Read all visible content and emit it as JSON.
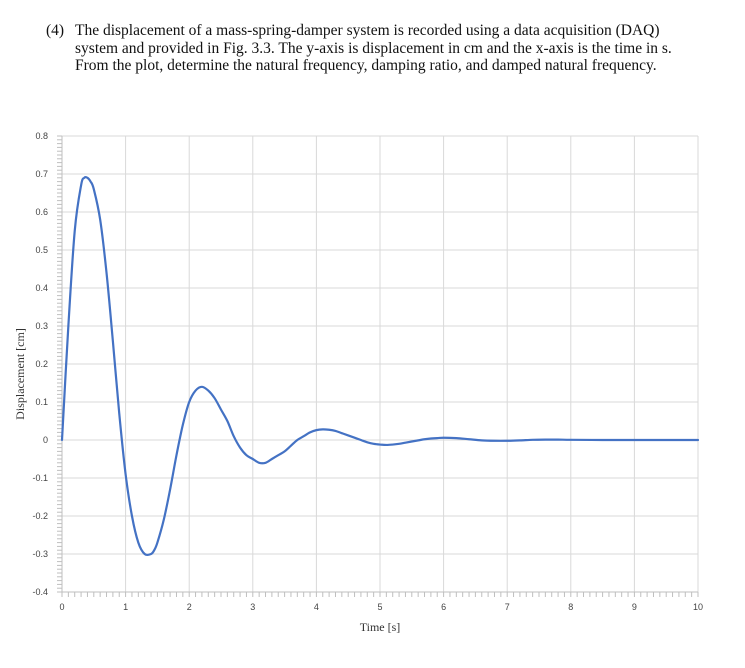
{
  "problem": {
    "number": "(4)",
    "text": "The displacement of a mass-spring-damper system is recorded using a data acquisition (DAQ) system and provided in Fig. 3.3. The y-axis is displacement in cm and the x-axis is the time in s. From the plot, determine the natural frequency, damping ratio, and damped natural frequency."
  },
  "chart_data": {
    "type": "line",
    "title": "",
    "xlabel": "Time [s]",
    "ylabel": "Displacement  [cm]",
    "xlim": [
      0,
      10
    ],
    "ylim": [
      -0.4,
      0.8
    ],
    "xticks": [
      "0",
      "1",
      "2",
      "3",
      "4",
      "5",
      "6",
      "7",
      "8",
      "9",
      "10"
    ],
    "yticks": [
      "0.8",
      "0.7",
      "0.6",
      "0.5",
      "0.4",
      "0.3",
      "0.2",
      "0.1",
      "0",
      "-0.1",
      "-0.2",
      "-0.3",
      "-0.4"
    ],
    "grid": true,
    "series": [
      {
        "color": "#4472c4",
        "x": [
          0,
          0.1,
          0.2,
          0.3,
          0.35,
          0.4,
          0.45,
          0.5,
          0.6,
          0.7,
          0.8,
          0.9,
          1.0,
          1.1,
          1.2,
          1.3,
          1.4,
          1.45,
          1.5,
          1.6,
          1.7,
          1.8,
          1.9,
          2.0,
          2.1,
          2.2,
          2.3,
          2.4,
          2.5,
          2.6,
          2.7,
          2.8,
          2.9,
          3.0,
          3.1,
          3.2,
          3.3,
          3.4,
          3.5,
          3.6,
          3.7,
          3.8,
          3.9,
          4.0,
          4.1,
          4.2,
          4.3,
          4.4,
          4.5,
          4.6,
          4.7,
          4.8,
          4.9,
          5.0,
          5.1,
          5.2,
          5.3,
          5.4,
          5.5,
          5.6,
          5.7,
          5.8,
          5.9,
          6.0,
          6.2,
          6.4,
          6.6,
          6.8,
          7.0,
          7.2,
          7.4,
          7.6,
          7.8,
          8.0,
          8.5,
          9.0,
          9.5,
          10.0
        ],
        "y": [
          0,
          0.3,
          0.55,
          0.67,
          0.69,
          0.69,
          0.68,
          0.66,
          0.58,
          0.44,
          0.26,
          0.07,
          -0.09,
          -0.2,
          -0.27,
          -0.3,
          -0.3,
          -0.29,
          -0.27,
          -0.21,
          -0.13,
          -0.04,
          0.04,
          0.1,
          0.13,
          0.14,
          0.13,
          0.11,
          0.08,
          0.05,
          0.01,
          -0.02,
          -0.04,
          -0.05,
          -0.06,
          -0.06,
          -0.05,
          -0.04,
          -0.03,
          -0.015,
          0,
          0.01,
          0.02,
          0.026,
          0.028,
          0.027,
          0.024,
          0.018,
          0.012,
          0.006,
          0,
          -0.006,
          -0.01,
          -0.012,
          -0.013,
          -0.012,
          -0.01,
          -0.007,
          -0.004,
          -0.001,
          0.002,
          0.004,
          0.005,
          0.006,
          0.005,
          0.002,
          -0.001,
          -0.002,
          -0.002,
          -0.001,
          0.0005,
          0.001,
          0.001,
          0.0005,
          0,
          0,
          0,
          0
        ]
      }
    ]
  }
}
